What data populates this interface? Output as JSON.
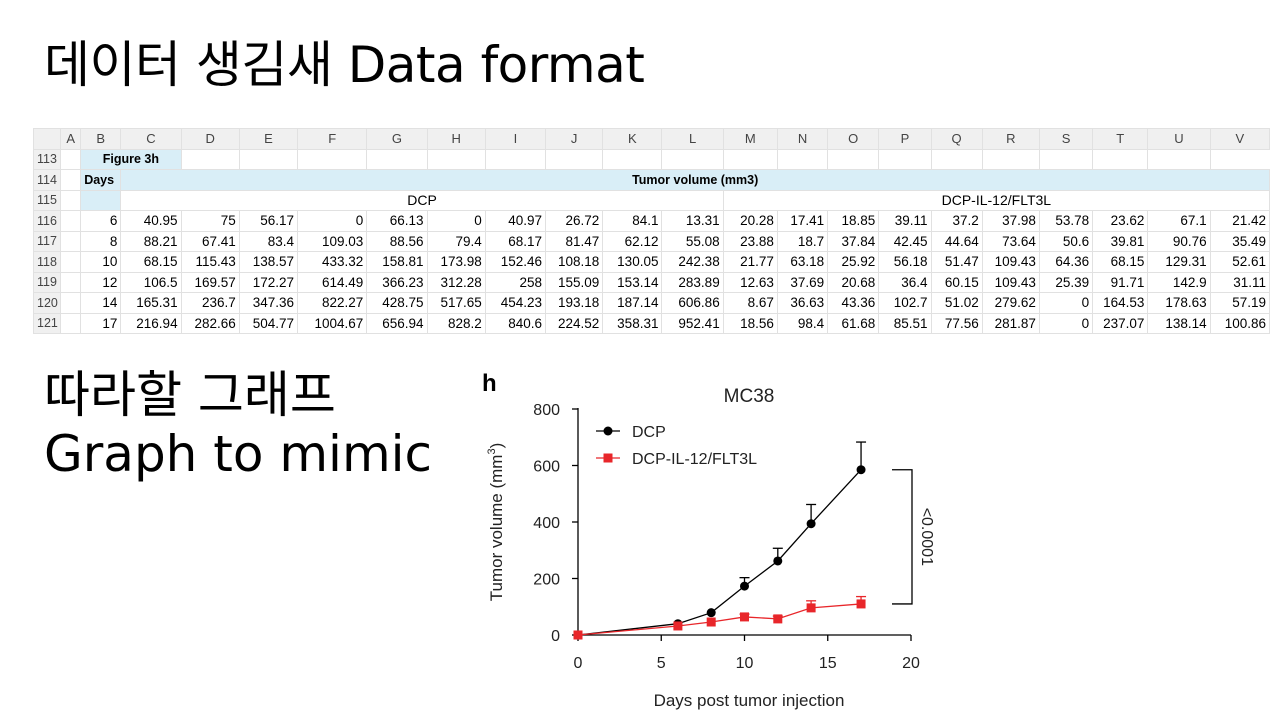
{
  "slide": {
    "title": "데이터 생김새 Data format",
    "graph_title_line1": "따라할 그래프",
    "graph_title_line2": "Graph to mimic"
  },
  "sheet": {
    "columns": [
      "A",
      "B",
      "C",
      "D",
      "E",
      "F",
      "G",
      "H",
      "I",
      "J",
      "K",
      "L",
      "M",
      "N",
      "O",
      "P",
      "Q",
      "R",
      "S",
      "T",
      "U",
      "V"
    ],
    "figure_label": "Figure 3h",
    "days_label": "Days",
    "measure_label": "Tumor volume (mm3)",
    "group1": "DCP",
    "group2": "DCP-IL-12/FLT3L",
    "header_row_numbers": [
      "113",
      "114",
      "115"
    ],
    "rows": [
      {
        "row": "116",
        "day": "6",
        "values": [
          "40.95",
          "75",
          "56.17",
          "0",
          "66.13",
          "0",
          "40.97",
          "26.72",
          "84.1",
          "13.31",
          "20.28",
          "17.41",
          "18.85",
          "39.11",
          "37.2",
          "37.98",
          "53.78",
          "23.62",
          "67.1",
          "21.42"
        ]
      },
      {
        "row": "117",
        "day": "8",
        "values": [
          "88.21",
          "67.41",
          "83.4",
          "109.03",
          "88.56",
          "79.4",
          "68.17",
          "81.47",
          "62.12",
          "55.08",
          "23.88",
          "18.7",
          "37.84",
          "42.45",
          "44.64",
          "73.64",
          "50.6",
          "39.81",
          "90.76",
          "35.49"
        ]
      },
      {
        "row": "118",
        "day": "10",
        "values": [
          "68.15",
          "115.43",
          "138.57",
          "433.32",
          "158.81",
          "173.98",
          "152.46",
          "108.18",
          "130.05",
          "242.38",
          "21.77",
          "63.18",
          "25.92",
          "56.18",
          "51.47",
          "109.43",
          "64.36",
          "68.15",
          "129.31",
          "52.61"
        ]
      },
      {
        "row": "119",
        "day": "12",
        "values": [
          "106.5",
          "169.57",
          "172.27",
          "614.49",
          "366.23",
          "312.28",
          "258",
          "155.09",
          "153.14",
          "283.89",
          "12.63",
          "37.69",
          "20.68",
          "36.4",
          "60.15",
          "109.43",
          "25.39",
          "91.71",
          "142.9",
          "31.11"
        ]
      },
      {
        "row": "120",
        "day": "14",
        "values": [
          "165.31",
          "236.7",
          "347.36",
          "822.27",
          "428.75",
          "517.65",
          "454.23",
          "193.18",
          "187.14",
          "606.86",
          "8.67",
          "36.63",
          "43.36",
          "102.7",
          "51.02",
          "279.62",
          "0",
          "164.53",
          "178.63",
          "57.19"
        ]
      },
      {
        "row": "121",
        "day": "17",
        "values": [
          "216.94",
          "282.66",
          "504.77",
          "1004.67",
          "656.94",
          "828.2",
          "840.6",
          "224.52",
          "358.31",
          "952.41",
          "18.56",
          "98.4",
          "61.68",
          "85.51",
          "77.56",
          "281.87",
          "0",
          "237.07",
          "138.14",
          "100.86"
        ]
      }
    ]
  },
  "chart_data": {
    "type": "line",
    "panel_label": "h",
    "title": "MC38",
    "xlabel": "Days post tumor injection",
    "ylabel_main": "Tumor volume (mm",
    "ylabel_sup": "3",
    "ylabel_end": ")",
    "xlim": [
      0,
      20
    ],
    "ylim": [
      0,
      800
    ],
    "xticks": [
      "0",
      "5",
      "10",
      "15",
      "20"
    ],
    "yticks": [
      "0",
      "200",
      "400",
      "600",
      "800"
    ],
    "legend_position": "top-left",
    "pvalue_label": "<0.0001",
    "series": [
      {
        "name": "DCP",
        "color": "#000000",
        "marker": "circle",
        "x": [
          0,
          6,
          8,
          10,
          12,
          14,
          17
        ],
        "y": [
          0,
          40,
          79,
          173,
          262,
          394,
          585
        ],
        "err": [
          0,
          0,
          0,
          30,
          45,
          68,
          98
        ]
      },
      {
        "name": "DCP-IL-12/FLT3L",
        "color": "#e8262a",
        "marker": "square",
        "x": [
          0,
          6,
          8,
          10,
          12,
          14,
          17
        ],
        "y": [
          0,
          32,
          46,
          64,
          57,
          96,
          110
        ],
        "err": [
          0,
          0,
          0,
          10,
          10,
          25,
          26
        ]
      }
    ]
  }
}
